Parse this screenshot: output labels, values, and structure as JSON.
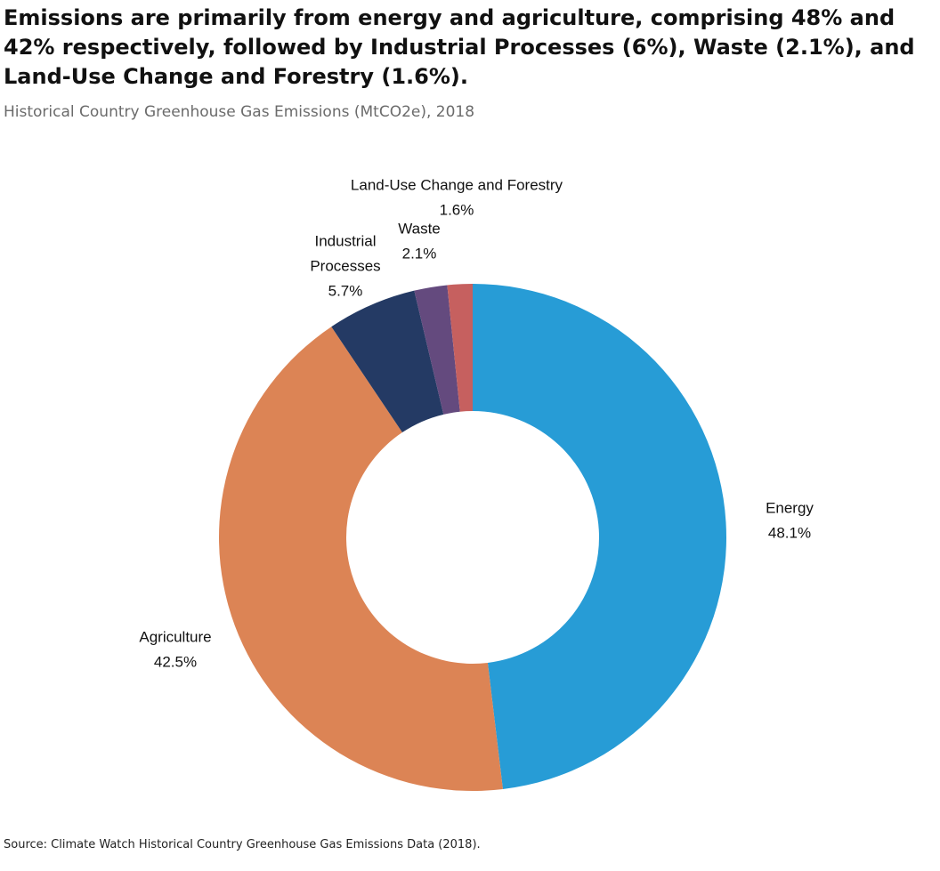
{
  "header": {
    "title": "Emissions are primarily from energy and agriculture, comprising 48% and 42% respectively, followed by Industrial Processes (6%), Waste (2.1%), and Land-Use Change and Forestry (1.6%).",
    "subtitle": "Historical Country Greenhouse Gas Emissions (MtCO2e), 2018"
  },
  "footer": {
    "source": "Source: Climate Watch Historical Country Greenhouse Gas Emissions Data (2018)."
  },
  "chart_data": {
    "type": "pie",
    "variant": "donut",
    "title": "Emissions are primarily from energy and agriculture, comprising 48% and 42% respectively, followed by Industrial Processes (6%), Waste (2.1%), and Land-Use Change and Forestry (1.6%).",
    "subtitle": "Historical Country Greenhouse Gas Emissions (MtCO2e), 2018",
    "units": "%",
    "slices": [
      {
        "label": "Energy",
        "display_label": [
          "Energy"
        ],
        "value": 48.1,
        "value_label": "48.1%",
        "color": "#279cd6"
      },
      {
        "label": "Agriculture",
        "display_label": [
          "Agriculture"
        ],
        "value": 42.5,
        "value_label": "42.5%",
        "color": "#dc8455"
      },
      {
        "label": "Industrial Processes",
        "display_label": [
          "Industrial",
          "Processes"
        ],
        "value": 5.7,
        "value_label": "5.7%",
        "color": "#243a64"
      },
      {
        "label": "Waste",
        "display_label": [
          "Waste"
        ],
        "value": 2.1,
        "value_label": "2.1%",
        "color": "#644a7e"
      },
      {
        "label": "Land-Use Change and Forestry",
        "display_label": [
          "Land-Use Change and Forestry"
        ],
        "value": 1.6,
        "value_label": "1.6%",
        "color": "#c6605f"
      }
    ]
  }
}
